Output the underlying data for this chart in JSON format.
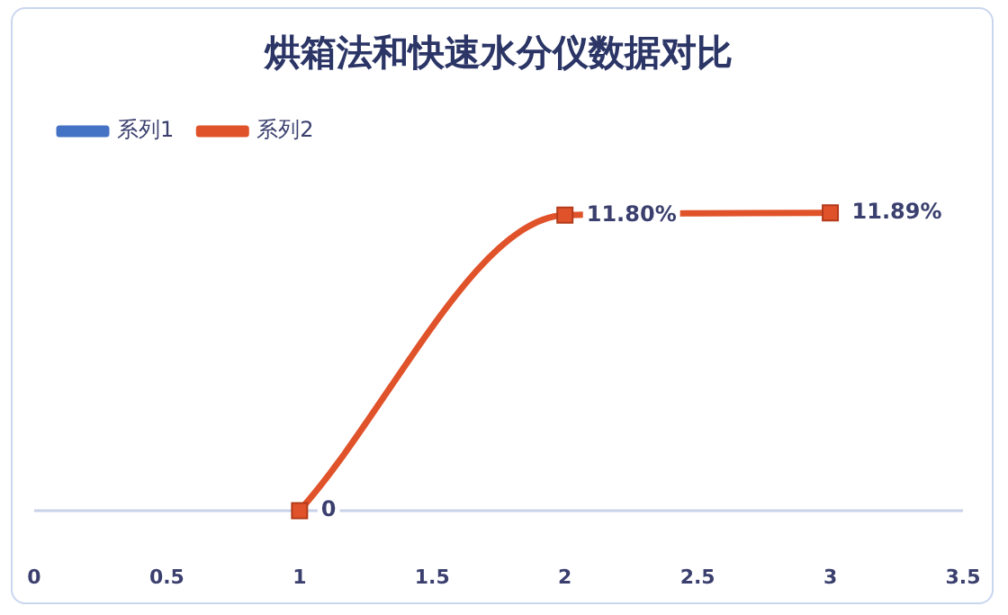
{
  "chart_data": {
    "type": "line",
    "title": "烘箱法和快速水分仪数据对比",
    "x": [
      1,
      2,
      3
    ],
    "xlim": [
      0,
      3.5
    ],
    "xticks": [
      0,
      0.5,
      1,
      1.5,
      2,
      2.5,
      3,
      3.5
    ],
    "tick_labels": "x",
    "grid": false,
    "legend": "top left",
    "series": [
      {
        "name": "系列1",
        "color": "#4472c4",
        "marker": "circle",
        "values": [
          null,
          null,
          null
        ]
      },
      {
        "name": "系列2",
        "color": "#e0522a",
        "marker": "square",
        "values": [
          0,
          11.8,
          11.89
        ],
        "value_labels": [
          "0",
          "11.80%",
          "11.89%"
        ]
      }
    ]
  }
}
